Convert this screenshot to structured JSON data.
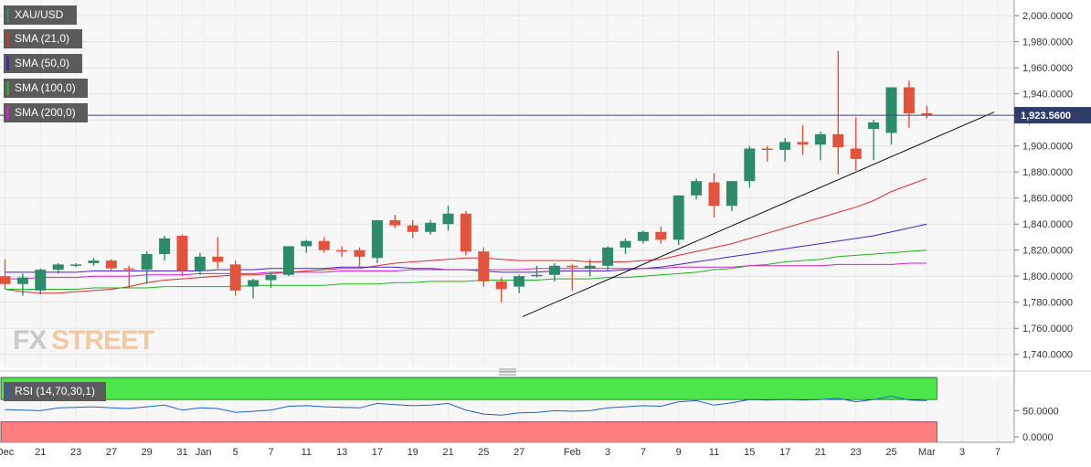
{
  "chart_data": {
    "type": "candlestick",
    "symbol": "XAU/USD",
    "last_price_label": "1,923.5600",
    "last_price": 1923.56,
    "price_axis": {
      "range": [
        1730,
        2012
      ],
      "ticks": [
        1740,
        1760,
        1780,
        1800,
        1820,
        1840,
        1860,
        1880,
        1900,
        1920,
        1940,
        1960,
        1980,
        2000
      ],
      "tick_labels": [
        "1,740.0000",
        "1,760.0000",
        "1,780.0000",
        "1,800.0000",
        "1,820.0000",
        "1,840.0000",
        "1,860.0000",
        "1,880.0000",
        "1,900.0000",
        "1,920.0000",
        "1,940.0000",
        "1,960.0000",
        "1,980.0000",
        "2,000.0000"
      ]
    },
    "x_axis": {
      "tick_labels": [
        "Dec",
        "21",
        "23",
        "27",
        "29",
        "31",
        "Jan",
        "5",
        "7",
        "11",
        "13",
        "17",
        "19",
        "21",
        "25",
        "27",
        "Feb",
        "3",
        "7",
        "9",
        "11",
        "15",
        "17",
        "21",
        "23",
        "25",
        "Mar",
        "3",
        "7"
      ],
      "tick_index": [
        0,
        2,
        4,
        6,
        8,
        10,
        11.2,
        13,
        15,
        17,
        19,
        21,
        23,
        25,
        27,
        29,
        32,
        34,
        36,
        38,
        40,
        42,
        44,
        46,
        48,
        50,
        52,
        54,
        56
      ],
      "last_index_shown": 57
    },
    "candles": [
      {
        "o": 1800,
        "h": 1813,
        "l": 1790,
        "c": 1794
      },
      {
        "o": 1794,
        "h": 1802,
        "l": 1785,
        "c": 1799
      },
      {
        "o": 1789,
        "h": 1806,
        "l": 1786,
        "c": 1805
      },
      {
        "o": 1805,
        "h": 1810,
        "l": 1802,
        "c": 1809
      },
      {
        "o": 1808,
        "h": 1810,
        "l": 1807,
        "c": 1809
      },
      {
        "o": 1810,
        "h": 1814,
        "l": 1808,
        "c": 1812
      },
      {
        "o": 1812,
        "h": 1813,
        "l": 1804,
        "c": 1806
      },
      {
        "o": 1806,
        "h": 1808,
        "l": 1791,
        "c": 1805
      },
      {
        "o": 1805,
        "h": 1819,
        "l": 1794,
        "c": 1817
      },
      {
        "o": 1817,
        "h": 1831,
        "l": 1812,
        "c": 1829
      },
      {
        "o": 1831,
        "h": 1832,
        "l": 1800,
        "c": 1804
      },
      {
        "o": 1804,
        "h": 1818,
        "l": 1801,
        "c": 1815
      },
      {
        "o": 1815,
        "h": 1830,
        "l": 1806,
        "c": 1811
      },
      {
        "o": 1809,
        "h": 1812,
        "l": 1785,
        "c": 1789
      },
      {
        "o": 1792,
        "h": 1798,
        "l": 1783,
        "c": 1797
      },
      {
        "o": 1797,
        "h": 1803,
        "l": 1791,
        "c": 1801
      },
      {
        "o": 1801,
        "h": 1823,
        "l": 1800,
        "c": 1823
      },
      {
        "o": 1823,
        "h": 1828,
        "l": 1818,
        "c": 1827
      },
      {
        "o": 1827,
        "h": 1830,
        "l": 1818,
        "c": 1820
      },
      {
        "o": 1820,
        "h": 1823,
        "l": 1815,
        "c": 1819
      },
      {
        "o": 1820,
        "h": 1822,
        "l": 1806,
        "c": 1815
      },
      {
        "o": 1814,
        "h": 1843,
        "l": 1810,
        "c": 1843
      },
      {
        "o": 1843,
        "h": 1847,
        "l": 1837,
        "c": 1839
      },
      {
        "o": 1839,
        "h": 1843,
        "l": 1829,
        "c": 1834
      },
      {
        "o": 1834,
        "h": 1843,
        "l": 1832,
        "c": 1841
      },
      {
        "o": 1840,
        "h": 1854,
        "l": 1835,
        "c": 1848
      },
      {
        "o": 1848,
        "h": 1850,
        "l": 1816,
        "c": 1819
      },
      {
        "o": 1819,
        "h": 1822,
        "l": 1792,
        "c": 1796
      },
      {
        "o": 1796,
        "h": 1799,
        "l": 1780,
        "c": 1790
      },
      {
        "o": 1792,
        "h": 1801,
        "l": 1787,
        "c": 1800
      },
      {
        "o": 1801,
        "h": 1808,
        "l": 1799,
        "c": 1801
      },
      {
        "o": 1801,
        "h": 1810,
        "l": 1796,
        "c": 1808
      },
      {
        "o": 1808,
        "h": 1809,
        "l": 1789,
        "c": 1807
      },
      {
        "o": 1806,
        "h": 1813,
        "l": 1800,
        "c": 1808
      },
      {
        "o": 1808,
        "h": 1823,
        "l": 1804,
        "c": 1822
      },
      {
        "o": 1822,
        "h": 1829,
        "l": 1817,
        "c": 1827
      },
      {
        "o": 1827,
        "h": 1835,
        "l": 1825,
        "c": 1834
      },
      {
        "o": 1834,
        "h": 1838,
        "l": 1825,
        "c": 1828
      },
      {
        "o": 1828,
        "h": 1862,
        "l": 1824,
        "c": 1862
      },
      {
        "o": 1862,
        "h": 1875,
        "l": 1859,
        "c": 1873
      },
      {
        "o": 1872,
        "h": 1879,
        "l": 1845,
        "c": 1854
      },
      {
        "o": 1854,
        "h": 1873,
        "l": 1850,
        "c": 1873
      },
      {
        "o": 1873,
        "h": 1900,
        "l": 1868,
        "c": 1898
      },
      {
        "o": 1898,
        "h": 1900,
        "l": 1888,
        "c": 1897
      },
      {
        "o": 1897,
        "h": 1906,
        "l": 1888,
        "c": 1903
      },
      {
        "o": 1903,
        "h": 1916,
        "l": 1893,
        "c": 1901
      },
      {
        "o": 1901,
        "h": 1911,
        "l": 1889,
        "c": 1909
      },
      {
        "o": 1909,
        "h": 1973,
        "l": 1878,
        "c": 1899
      },
      {
        "o": 1898,
        "h": 1922,
        "l": 1881,
        "c": 1890
      },
      {
        "o": 1913,
        "h": 1920,
        "l": 1889,
        "c": 1918
      },
      {
        "o": 1910,
        "h": 1945,
        "l": 1901,
        "c": 1945
      },
      {
        "o": 1945,
        "h": 1950,
        "l": 1914,
        "c": 1925
      },
      {
        "o": 1925,
        "h": 1931,
        "l": 1921,
        "c": 1923.56
      }
    ],
    "trendline": {
      "from": {
        "i": 29.2,
        "v": 1769
      },
      "to": {
        "i": 55.8,
        "v": 1926
      }
    },
    "sma": [
      {
        "name": "SMA (21,0)",
        "color": "#e32a2a",
        "values": [
          1790,
          1788,
          1787,
          1787,
          1788,
          1789,
          1790,
          1792,
          1795,
          1797,
          1798,
          1799,
          1800,
          1801,
          1801,
          1802,
          1803,
          1804,
          1805,
          1806,
          1806,
          1808,
          1810,
          1811,
          1812,
          1813,
          1814,
          1814,
          1813,
          1812,
          1812,
          1812,
          1812,
          1811,
          1811,
          1811,
          1812,
          1813,
          1816,
          1819,
          1822,
          1825,
          1829,
          1833,
          1837,
          1841,
          1845,
          1849,
          1853,
          1858,
          1865,
          1870,
          1875
        ]
      },
      {
        "name": "SMA (50,0)",
        "color": "#4a1ec9",
        "values": [
          1803,
          1803,
          1803,
          1803,
          1803,
          1804,
          1804,
          1804,
          1804,
          1804,
          1804,
          1804,
          1805,
          1805,
          1805,
          1806,
          1806,
          1806,
          1806,
          1807,
          1807,
          1807,
          1807,
          1806,
          1806,
          1805,
          1805,
          1804,
          1803,
          1803,
          1803,
          1804,
          1804,
          1804,
          1804,
          1805,
          1806,
          1807,
          1809,
          1811,
          1813,
          1815,
          1817,
          1819,
          1821,
          1823,
          1825,
          1827,
          1829,
          1831,
          1834,
          1837,
          1840
        ]
      },
      {
        "name": "SMA (100,0)",
        "color": "#1fb31f",
        "values": [
          1790,
          1790,
          1790,
          1790,
          1790,
          1791,
          1791,
          1791,
          1791,
          1792,
          1792,
          1792,
          1792,
          1792,
          1793,
          1793,
          1793,
          1793,
          1793,
          1794,
          1794,
          1794,
          1795,
          1795,
          1796,
          1796,
          1796,
          1797,
          1797,
          1797,
          1797,
          1798,
          1798,
          1798,
          1799,
          1799,
          1800,
          1801,
          1802,
          1803,
          1805,
          1806,
          1808,
          1809,
          1811,
          1812,
          1813,
          1815,
          1816,
          1817,
          1818,
          1819,
          1820
        ]
      },
      {
        "name": "SMA (200,0)",
        "color": "#d31fd3",
        "values": [
          1798,
          1798,
          1799,
          1799,
          1799,
          1800,
          1800,
          1800,
          1801,
          1801,
          1801,
          1802,
          1802,
          1802,
          1802,
          1803,
          1803,
          1803,
          1803,
          1804,
          1804,
          1804,
          1804,
          1805,
          1805,
          1805,
          1805,
          1805,
          1805,
          1805,
          1806,
          1806,
          1806,
          1806,
          1806,
          1806,
          1806,
          1806,
          1807,
          1807,
          1807,
          1807,
          1808,
          1808,
          1808,
          1808,
          1808,
          1809,
          1809,
          1809,
          1809,
          1810,
          1810
        ]
      }
    ],
    "rsi": {
      "name": "RSI (14,70,30,1)",
      "range": [
        0,
        100
      ],
      "ticks": [
        0,
        50
      ],
      "tick_labels": [
        "0.0000",
        "50.0000"
      ],
      "overbought": 70,
      "oversold": 30,
      "values": [
        52,
        51,
        50,
        55,
        56,
        57,
        55,
        54,
        57,
        60,
        51,
        55,
        54,
        47,
        49,
        51,
        58,
        59,
        57,
        56,
        55,
        63,
        61,
        59,
        60,
        63,
        51,
        44,
        42,
        46,
        47,
        50,
        49,
        50,
        55,
        57,
        59,
        58,
        66,
        68,
        60,
        64,
        70,
        69,
        70,
        69,
        70,
        72,
        66,
        70,
        76,
        69,
        68
      ]
    }
  }
}
